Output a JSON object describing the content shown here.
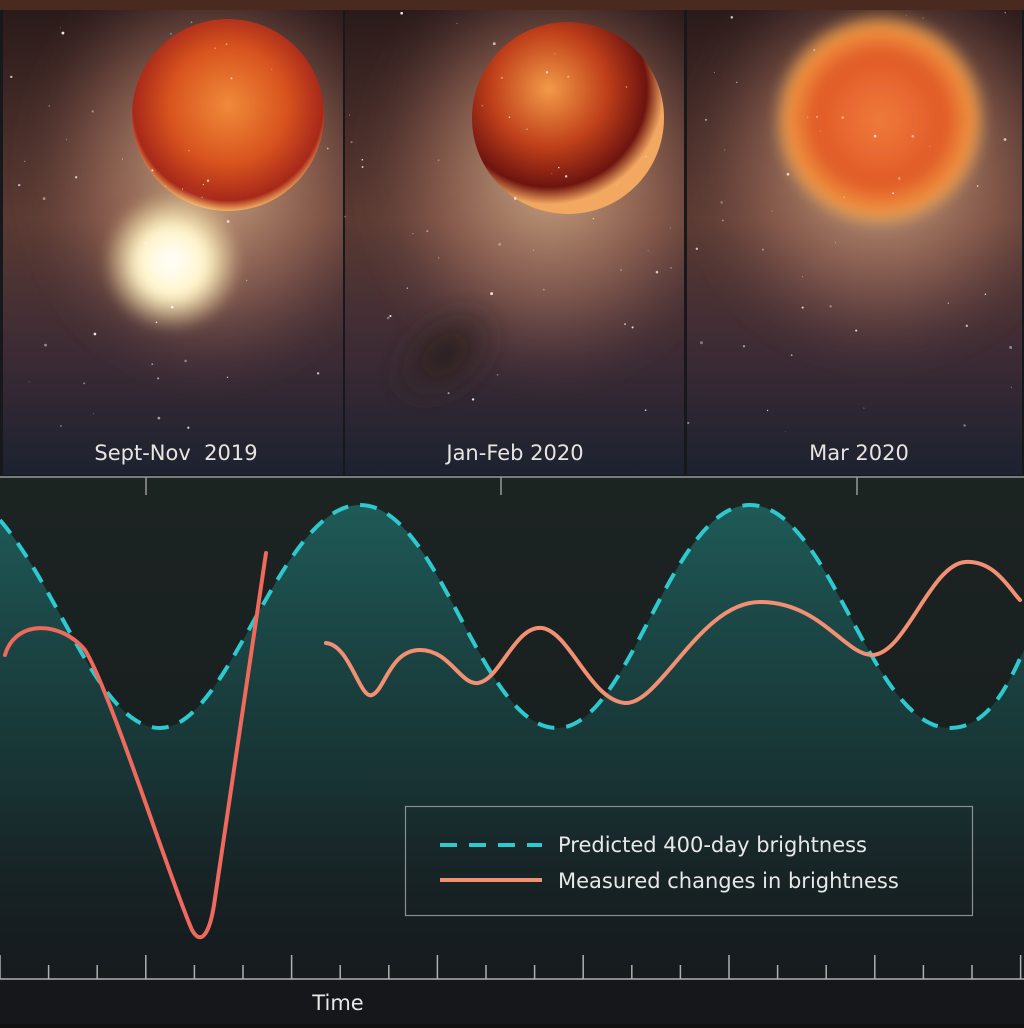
{
  "panels": [
    {
      "label": "Sept-Nov  2019"
    },
    {
      "label": "Jan-Feb 2020"
    },
    {
      "label": "Mar 2020"
    }
  ],
  "legend": [
    {
      "label": "Predicted 400-day brightness"
    },
    {
      "label": "Measured changes in brightness"
    }
  ],
  "x_axis_label": "Time"
}
